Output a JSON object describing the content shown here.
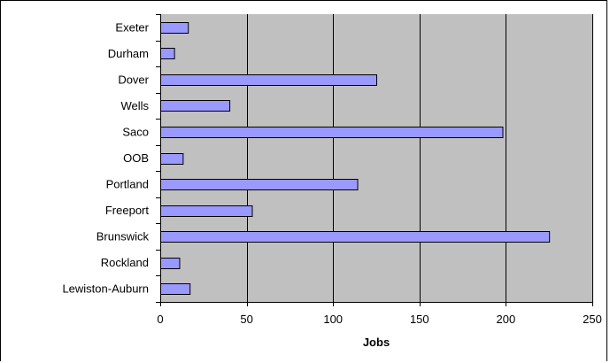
{
  "chart_data": {
    "type": "bar",
    "orientation": "horizontal",
    "categories": [
      "Exeter",
      "Durham",
      "Dover",
      "Wells",
      "Saco",
      "OOB",
      "Portland",
      "Freeport",
      "Brunswick",
      "Rockland",
      "Lewiston-Auburn"
    ],
    "values": [
      16,
      8,
      125,
      40,
      198,
      13,
      114,
      53,
      225,
      11,
      17
    ],
    "xlabel": "Jobs",
    "ylabel": "",
    "title": "",
    "xlim": [
      0,
      250
    ],
    "xticks": [
      0,
      50,
      100,
      150,
      200,
      250
    ],
    "grid": "vertical",
    "legend": "none",
    "colors": {
      "bar_fill": "#9999ff",
      "bar_stroke": "#000000",
      "plot_background": "#c0c0c0",
      "grid": "#000000"
    }
  }
}
